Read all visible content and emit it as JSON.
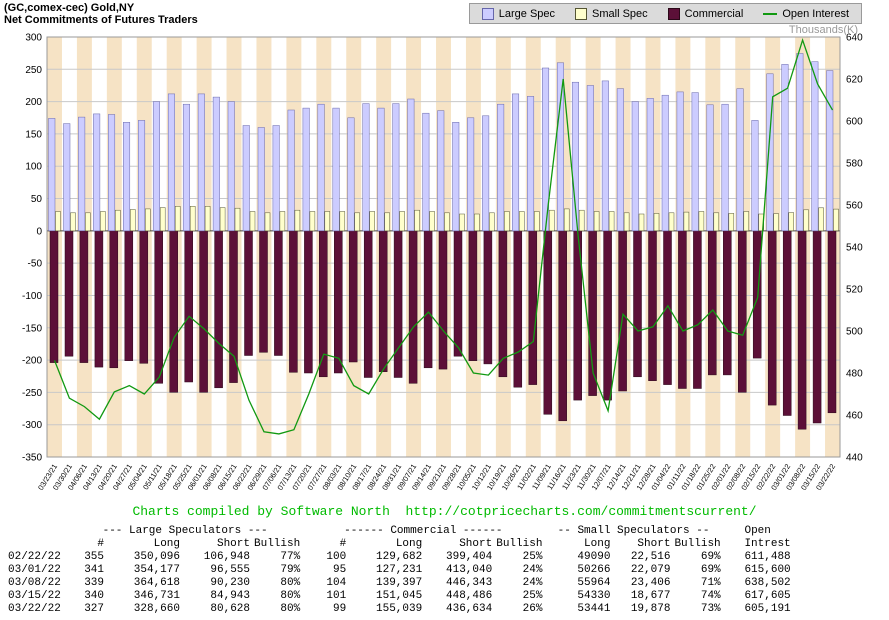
{
  "chart": {
    "title_line1": "(GC,comex-cec) Gold,NY",
    "title_line2": "Net Commitments of Futures Traders",
    "right_axis_unit": "Thousands(K)"
  },
  "chart_data": {
    "type": "bar",
    "title": "Net Commitments of Futures Traders",
    "legend_position": "top-right",
    "grid": true,
    "background_stripe_color": "#f6e3c5",
    "categories": [
      "03/23/21",
      "03/30/21",
      "04/06/21",
      "04/13/21",
      "04/20/21",
      "04/27/21",
      "05/04/21",
      "05/11/21",
      "05/18/21",
      "05/25/21",
      "06/01/21",
      "06/08/21",
      "06/15/21",
      "06/22/21",
      "06/29/21",
      "07/06/21",
      "07/13/21",
      "07/20/21",
      "07/27/21",
      "08/03/21",
      "08/10/21",
      "08/17/21",
      "08/24/21",
      "08/31/21",
      "09/07/21",
      "09/14/21",
      "09/21/21",
      "09/28/21",
      "10/05/21",
      "10/12/21",
      "10/19/21",
      "10/26/21",
      "11/02/21",
      "11/09/21",
      "11/16/21",
      "11/23/21",
      "11/30/21",
      "12/07/21",
      "12/14/21",
      "12/21/21",
      "12/28/21",
      "01/04/22",
      "01/11/22",
      "01/18/22",
      "01/25/22",
      "02/01/22",
      "02/08/22",
      "02/15/22",
      "02/22/22",
      "03/01/22",
      "03/08/22",
      "03/15/22",
      "03/22/22"
    ],
    "series": [
      {
        "name": "Large Spec",
        "kind": "bar",
        "axis": "left",
        "color": "#ccccff",
        "border": "#6666aa",
        "values": [
          174,
          166,
          176,
          181,
          180,
          168,
          171,
          200,
          212,
          196,
          212,
          207,
          200,
          163,
          160,
          163,
          187,
          190,
          196,
          190,
          175,
          197,
          190,
          197,
          204,
          182,
          186,
          168,
          175,
          178,
          196,
          212,
          208,
          252,
          260,
          230,
          225,
          232,
          220,
          200,
          205,
          210,
          215,
          214,
          195,
          196,
          220,
          171,
          243.1,
          257.6,
          274.4,
          261.8,
          248.0
        ]
      },
      {
        "name": "Small Spec",
        "kind": "bar",
        "axis": "left",
        "color": "#ffffcc",
        "border": "#555533",
        "values": [
          30,
          28,
          28,
          30,
          32,
          33,
          34,
          36,
          38,
          38,
          38,
          36,
          35,
          30,
          28,
          30,
          32,
          30,
          30,
          30,
          28,
          30,
          28,
          30,
          32,
          30,
          28,
          26,
          26,
          28,
          30,
          30,
          30,
          32,
          34,
          32,
          30,
          30,
          28,
          26,
          27,
          28,
          29,
          30,
          28,
          27,
          30,
          26,
          26.6,
          28.2,
          32.6,
          35.7,
          33.6
        ]
      },
      {
        "name": "Commercial",
        "kind": "bar",
        "axis": "left",
        "color": "#5c1038",
        "border": "#2a0818",
        "values": [
          -204,
          -194,
          -204,
          -211,
          -212,
          -201,
          -205,
          -236,
          -250,
          -234,
          -250,
          -243,
          -235,
          -193,
          -188,
          -193,
          -219,
          -220,
          -226,
          -220,
          -203,
          -227,
          -218,
          -227,
          -236,
          -212,
          -214,
          -194,
          -201,
          -206,
          -226,
          -242,
          -238,
          -284,
          -294,
          -262,
          -255,
          -262,
          -248,
          -226,
          -232,
          -238,
          -244,
          -244,
          -223,
          -223,
          -250,
          -197,
          -269.7,
          -285.8,
          -307.0,
          -297.5,
          -281.6
        ]
      },
      {
        "name": "Open Interest",
        "kind": "line",
        "axis": "right",
        "color": "#119911",
        "values": [
          486,
          468,
          464,
          458,
          471,
          474,
          470,
          478,
          497,
          507,
          501,
          494,
          488,
          467,
          452,
          451,
          453,
          470,
          489,
          487,
          474,
          470,
          482,
          492,
          502,
          509,
          500,
          492,
          480,
          479,
          487,
          490,
          495,
          560,
          620,
          545,
          480,
          462,
          508,
          500,
          502,
          512,
          500,
          503,
          510,
          500,
          498,
          516,
          611.5,
          615.6,
          638.5,
          617.6,
          605.2
        ]
      }
    ],
    "left_axis": {
      "min": -350,
      "max": 300,
      "tick_step": 50,
      "ticks": [
        "300",
        "250",
        "200",
        "150",
        "100",
        "50",
        "0",
        "-50",
        "-100",
        "-150",
        "-200",
        "-250",
        "-300",
        "-350"
      ]
    },
    "right_axis": {
      "min": 440,
      "max": 640,
      "tick_step": 20,
      "label": "Thousands(K)",
      "ticks": [
        "640",
        "620",
        "600",
        "580",
        "560",
        "540",
        "520",
        "500",
        "480",
        "460",
        "440"
      ]
    }
  },
  "footer": {
    "credit": "Charts compiled by Software North  http://cotpricecharts.com/commitmentscurrent/",
    "color": "#00bb00"
  },
  "table": {
    "group_headers": [
      {
        "label": "",
        "span": 1
      },
      {
        "label": "--- Large Speculators ---",
        "span": 4
      },
      {
        "label": "------ Commercial ------",
        "span": 4
      },
      {
        "label": "-- Small Speculators --",
        "span": 3
      },
      {
        "label": "Open",
        "span": 1
      }
    ],
    "columns": [
      "",
      "#",
      "Long",
      "Short",
      "Bullish",
      "#",
      "Long",
      "Short",
      "Bullish",
      "Long",
      "Short",
      "Bullish",
      "Intrest"
    ],
    "rows": [
      [
        "02/22/22",
        "355",
        "350,096",
        "106,948",
        "77%",
        "100",
        "129,682",
        "399,404",
        "25%",
        "49090",
        "22,516",
        "69%",
        "611,488"
      ],
      [
        "03/01/22",
        "341",
        "354,177",
        "96,555",
        "79%",
        "95",
        "127,231",
        "413,040",
        "24%",
        "50266",
        "22,079",
        "69%",
        "615,600"
      ],
      [
        "03/08/22",
        "339",
        "364,618",
        "90,230",
        "80%",
        "104",
        "139,397",
        "446,343",
        "24%",
        "55964",
        "23,406",
        "71%",
        "638,502"
      ],
      [
        "03/15/22",
        "340",
        "346,731",
        "84,943",
        "80%",
        "101",
        "151,045",
        "448,486",
        "25%",
        "54330",
        "18,677",
        "74%",
        "617,605"
      ],
      [
        "03/22/22",
        "327",
        "328,660",
        "80,628",
        "80%",
        "99",
        "155,039",
        "436,634",
        "26%",
        "53441",
        "19,878",
        "73%",
        "605,191"
      ]
    ]
  }
}
